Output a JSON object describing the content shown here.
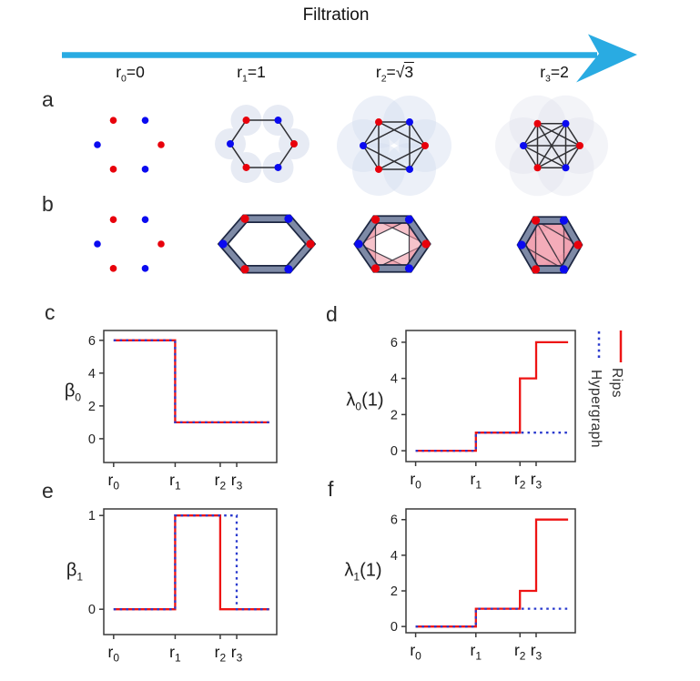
{
  "header": {
    "title": "Filtration",
    "columns": [
      {
        "base": "r",
        "sub": "0",
        "eq": "=",
        "value": "0",
        "sqrt": false
      },
      {
        "base": "r",
        "sub": "1",
        "eq": "=",
        "value": "1",
        "sqrt": false
      },
      {
        "base": "r",
        "sub": "2",
        "eq": "=",
        "value": "3",
        "sqrt": true
      },
      {
        "base": "r",
        "sub": "3",
        "eq": "=",
        "value": "2",
        "sqrt": false
      }
    ]
  },
  "complex_rows": [
    {
      "letter": "a",
      "name": "rips-complex-row",
      "cells": [
        {
          "kind": "points",
          "desc": "six alternating red/blue points"
        },
        {
          "kind": "disks-edges",
          "disk": 0.5,
          "edges": "adjacent",
          "desc": "hexagon graph with r=1 balls"
        },
        {
          "kind": "disks-edges",
          "disk": 0.87,
          "edges": "skip",
          "desc": "hexagon plus sqrt3 chords with balls"
        },
        {
          "kind": "disks-edges",
          "disk": 1.0,
          "edges": "all",
          "desc": "complete graph K6 with balls"
        }
      ]
    },
    {
      "letter": "b",
      "name": "hypergraph-row",
      "cells": [
        {
          "kind": "points",
          "desc": "six alternating red/blue points"
        },
        {
          "kind": "ring",
          "desc": "thick hyperedge hexagon ring"
        },
        {
          "kind": "ring-ears",
          "desc": "ring plus pink filled triangles, hollow center"
        },
        {
          "kind": "ring-full",
          "desc": "ring plus fully filled pink hexagon with chords"
        }
      ]
    }
  ],
  "legend": {
    "entries": [
      {
        "label": "Rips",
        "style": "solid",
        "color": "#ee1414"
      },
      {
        "label": "Hypergraph",
        "style": "dotted",
        "color": "#2a3ace"
      }
    ]
  },
  "colors": {
    "arrow": "#29abe2",
    "point_red": "#e8000b",
    "point_blue": "#0a0af0",
    "edge": "#2f2f33",
    "disk2": "#e7ebf4",
    "disk3": "rgba(213,222,240,0.45)",
    "disk4": "rgba(218,222,234,0.32)",
    "ring_outer": "#1d2742",
    "ring_inner": "#7e8aa6",
    "pink": "#f2a1af",
    "spine": "#3a3a3a",
    "rips": "#ee1414",
    "hypergraph": "#2a3ace"
  },
  "chart_data": [
    {
      "id": "c",
      "type": "line",
      "panel_letter": "c",
      "ylabel": {
        "greek": "β",
        "sub": "0",
        "suffix": ""
      },
      "xlabel_ticks": [
        {
          "base": "r",
          "sub": "0"
        },
        {
          "base": "r",
          "sub": "1"
        },
        {
          "base": "r",
          "sub": "2"
        },
        {
          "base": "r",
          "sub": "3"
        }
      ],
      "xtick_values": [
        0,
        1,
        1.732,
        2
      ],
      "yticks": [
        0,
        2,
        4,
        6
      ],
      "xlim": [
        -0.16,
        2.65
      ],
      "ylim": [
        -1.45,
        6.6
      ],
      "series": [
        {
          "name": "Rips",
          "style": "solid",
          "points": [
            [
              0,
              6
            ],
            [
              1,
              6
            ],
            [
              1,
              1
            ],
            [
              2.53,
              1
            ]
          ]
        },
        {
          "name": "Hypergraph",
          "style": "dotted",
          "points": [
            [
              0,
              6
            ],
            [
              1,
              6
            ],
            [
              1,
              1
            ],
            [
              2.53,
              1
            ]
          ]
        }
      ]
    },
    {
      "id": "d",
      "type": "line",
      "panel_letter": "d",
      "ylabel": {
        "greek": "λ",
        "sub": "0",
        "suffix": "(1)"
      },
      "xlabel_ticks": [
        {
          "base": "r",
          "sub": "0"
        },
        {
          "base": "r",
          "sub": "1"
        },
        {
          "base": "r",
          "sub": "2"
        },
        {
          "base": "r",
          "sub": "3"
        }
      ],
      "xtick_values": [
        0,
        1,
        1.732,
        2
      ],
      "yticks": [
        0,
        2,
        4,
        6
      ],
      "xlim": [
        -0.16,
        2.65
      ],
      "ylim": [
        -0.6,
        6.65
      ],
      "series": [
        {
          "name": "Rips",
          "style": "solid",
          "points": [
            [
              0,
              0
            ],
            [
              1,
              0
            ],
            [
              1,
              1
            ],
            [
              1.732,
              1
            ],
            [
              1.732,
              4
            ],
            [
              2,
              4
            ],
            [
              2,
              6
            ],
            [
              2.53,
              6
            ]
          ]
        },
        {
          "name": "Hypergraph",
          "style": "dotted",
          "points": [
            [
              0,
              0
            ],
            [
              1,
              0
            ],
            [
              1,
              1
            ],
            [
              2.53,
              1
            ]
          ]
        }
      ]
    },
    {
      "id": "e",
      "type": "line",
      "panel_letter": "e",
      "ylabel": {
        "greek": "β",
        "sub": "1",
        "suffix": ""
      },
      "xlabel_ticks": [
        {
          "base": "r",
          "sub": "0"
        },
        {
          "base": "r",
          "sub": "1"
        },
        {
          "base": "r",
          "sub": "2"
        },
        {
          "base": "r",
          "sub": "3"
        }
      ],
      "xtick_values": [
        0,
        1,
        1.732,
        2
      ],
      "yticks": [
        0,
        1
      ],
      "xlim": [
        -0.16,
        2.65
      ],
      "ylim": [
        -0.27,
        1.07
      ],
      "series": [
        {
          "name": "Rips",
          "style": "solid",
          "points": [
            [
              0,
              0
            ],
            [
              1,
              0
            ],
            [
              1,
              1
            ],
            [
              1.732,
              1
            ],
            [
              1.732,
              0
            ],
            [
              2.53,
              0
            ]
          ]
        },
        {
          "name": "Hypergraph",
          "style": "dotted",
          "points": [
            [
              0,
              0
            ],
            [
              1,
              0
            ],
            [
              1,
              1
            ],
            [
              2,
              1
            ],
            [
              2,
              0
            ],
            [
              2.53,
              0
            ]
          ]
        }
      ]
    },
    {
      "id": "f",
      "type": "line",
      "panel_letter": "f",
      "ylabel": {
        "greek": "λ",
        "sub": "1",
        "suffix": "(1)"
      },
      "xlabel_ticks": [
        {
          "base": "r",
          "sub": "0"
        },
        {
          "base": "r",
          "sub": "1"
        },
        {
          "base": "r",
          "sub": "2"
        },
        {
          "base": "r",
          "sub": "3"
        }
      ],
      "xtick_values": [
        0,
        1,
        1.732,
        2
      ],
      "yticks": [
        0,
        2,
        4,
        6
      ],
      "xlim": [
        -0.16,
        2.65
      ],
      "ylim": [
        -0.35,
        6.6
      ],
      "series": [
        {
          "name": "Rips",
          "style": "solid",
          "points": [
            [
              0,
              0
            ],
            [
              1,
              0
            ],
            [
              1,
              1
            ],
            [
              1.732,
              1
            ],
            [
              1.732,
              2
            ],
            [
              2,
              2
            ],
            [
              2,
              6
            ],
            [
              2.53,
              6
            ]
          ]
        },
        {
          "name": "Hypergraph",
          "style": "dotted",
          "points": [
            [
              0,
              0
            ],
            [
              1,
              0
            ],
            [
              1,
              1
            ],
            [
              2.53,
              1
            ]
          ]
        }
      ]
    }
  ]
}
